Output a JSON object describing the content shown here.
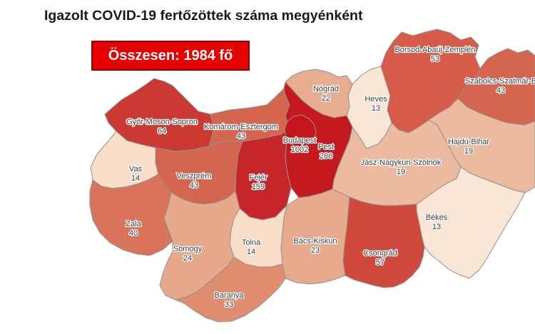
{
  "title": "Igazolt COVID-19 fertőzöttek száma megyénként",
  "total_badge": "Összesen: 1984 fő",
  "colors": {
    "background": "#ffffff",
    "title_text": "#1a1a1a",
    "badge_bg": "#e60000",
    "badge_border": "#8f0000",
    "badge_text": "#ffffff",
    "county_border": "#929292",
    "label_text": "#3a3a3a",
    "label_halo": "#ffffff"
  },
  "map": {
    "region": "Hungary counties choropleth",
    "unit": "fő",
    "total": 1984,
    "counties": [
      {
        "id": "gyms",
        "name": "Győr-Moson-Sopron",
        "value": "64",
        "color": "#ca3a33"
      },
      {
        "id": "komarom",
        "name": "Komárom-Esztergom",
        "value": "43",
        "color": "#d4654f"
      },
      {
        "id": "veszprem",
        "name": "Veszprém",
        "value": "43",
        "color": "#d4654f"
      },
      {
        "id": "vas",
        "name": "Vas",
        "value": "14",
        "color": "#f8dec8"
      },
      {
        "id": "zala",
        "name": "Zala",
        "value": "40",
        "color": "#d9745b"
      },
      {
        "id": "somogy",
        "name": "Somogy",
        "value": "24",
        "color": "#e7a98b"
      },
      {
        "id": "baranya",
        "name": "Baranya",
        "value": "33",
        "color": "#e08d70"
      },
      {
        "id": "tolna",
        "name": "Tolna",
        "value": "14",
        "color": "#f8dec8"
      },
      {
        "id": "fejer",
        "name": "Fejér",
        "value": "159",
        "color": "#c6252a"
      },
      {
        "id": "bacs",
        "name": "Bács-Kiskun",
        "value": "23",
        "color": "#e7aa8c"
      },
      {
        "id": "csongrad",
        "name": "Csongrád",
        "value": "57",
        "color": "#cf4a3c"
      },
      {
        "id": "bekes",
        "name": "Békés",
        "value": "13",
        "color": "#fae6d4"
      },
      {
        "id": "jasz",
        "name": "Jász-Nagykun-Szolnok",
        "value": "19",
        "color": "#ecbb9f"
      },
      {
        "id": "hajdu",
        "name": "Hajdú-Bihar",
        "value": "19",
        "color": "#ecbb9f"
      },
      {
        "id": "szabolcs",
        "name": "Szabolcs-Szatmár-B",
        "value": "43",
        "color": "#d4654f"
      },
      {
        "id": "borsod",
        "name": "Borsod-Abaúj-Zemplén",
        "value": "53",
        "color": "#d65b49"
      },
      {
        "id": "heves",
        "name": "Heves",
        "value": "13",
        "color": "#fae6d4"
      },
      {
        "id": "nograd",
        "name": "Nógrád",
        "value": "22",
        "color": "#e8ad90"
      },
      {
        "id": "pest",
        "name": "Pest",
        "value": "286",
        "color": "#c41a1f"
      },
      {
        "id": "budapest",
        "name": "Budapest",
        "value": "1002",
        "color": "#c3151b"
      }
    ]
  }
}
